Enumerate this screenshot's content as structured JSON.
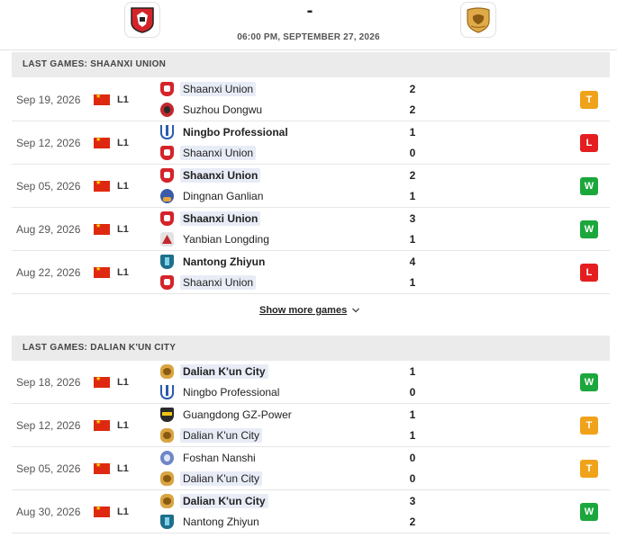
{
  "header": {
    "home_team_logo": "shaanxi-union-logo",
    "away_team_logo": "dalian-kun-city-logo",
    "score": "-",
    "datetime": "06:00 PM, SEPTEMBER 27, 2026"
  },
  "sections": [
    {
      "title": "LAST GAMES: SHAANXI UNION",
      "show_more": "Show more games",
      "games": [
        {
          "date": "Sep 19, 2026",
          "league": "L1",
          "team1": "Shaanxi Union",
          "team1_logo": "shaanxi",
          "score1": "2",
          "team2": "Suzhou Dongwu",
          "team2_logo": "suzhou",
          "score2": "2",
          "result": "T"
        },
        {
          "date": "Sep 12, 2026",
          "league": "L1",
          "team1": "Ningbo Professional",
          "team1_logo": "ningbo",
          "score1": "1",
          "team2": "Shaanxi Union",
          "team2_logo": "shaanxi",
          "score2": "0",
          "result": "L"
        },
        {
          "date": "Sep 05, 2026",
          "league": "L1",
          "team1": "Shaanxi Union",
          "team1_logo": "shaanxi",
          "score1": "2",
          "team2": "Dingnan Ganlian",
          "team2_logo": "dingnan",
          "score2": "1",
          "result": "W"
        },
        {
          "date": "Aug 29, 2026",
          "league": "L1",
          "team1": "Shaanxi Union",
          "team1_logo": "shaanxi",
          "score1": "3",
          "team2": "Yanbian Longding",
          "team2_logo": "yanbian",
          "score2": "1",
          "result": "W"
        },
        {
          "date": "Aug 22, 2026",
          "league": "L1",
          "team1": "Nantong Zhiyun",
          "team1_logo": "nantong",
          "score1": "4",
          "team2": "Shaanxi Union",
          "team2_logo": "shaanxi",
          "score2": "1",
          "result": "L"
        }
      ]
    },
    {
      "title": "LAST GAMES: DALIAN K'UN CITY",
      "games": [
        {
          "date": "Sep 18, 2026",
          "league": "L1",
          "team1": "Dalian K'un City",
          "team1_logo": "dalian",
          "score1": "1",
          "team2": "Ningbo Professional",
          "team2_logo": "ningbo",
          "score2": "0",
          "result": "W"
        },
        {
          "date": "Sep 12, 2026",
          "league": "L1",
          "team1": "Guangdong GZ-Power",
          "team1_logo": "guangdong",
          "score1": "1",
          "team2": "Dalian K'un City",
          "team2_logo": "dalian",
          "score2": "1",
          "result": "T"
        },
        {
          "date": "Sep 05, 2026",
          "league": "L1",
          "team1": "Foshan Nanshi",
          "team1_logo": "foshan",
          "score1": "0",
          "team2": "Dalian K'un City",
          "team2_logo": "dalian",
          "score2": "0",
          "result": "T"
        },
        {
          "date": "Aug 30, 2026",
          "league": "L1",
          "team1": "Dalian K'un City",
          "team1_logo": "dalian",
          "score1": "3",
          "team2": "Nantong Zhiyun",
          "team2_logo": "nantong",
          "score2": "2",
          "result": "W"
        }
      ]
    }
  ],
  "colors": {
    "win": "#1ba73c",
    "loss": "#e41e20",
    "tie": "#f0a21a",
    "highlight": "#e8ecf6"
  }
}
